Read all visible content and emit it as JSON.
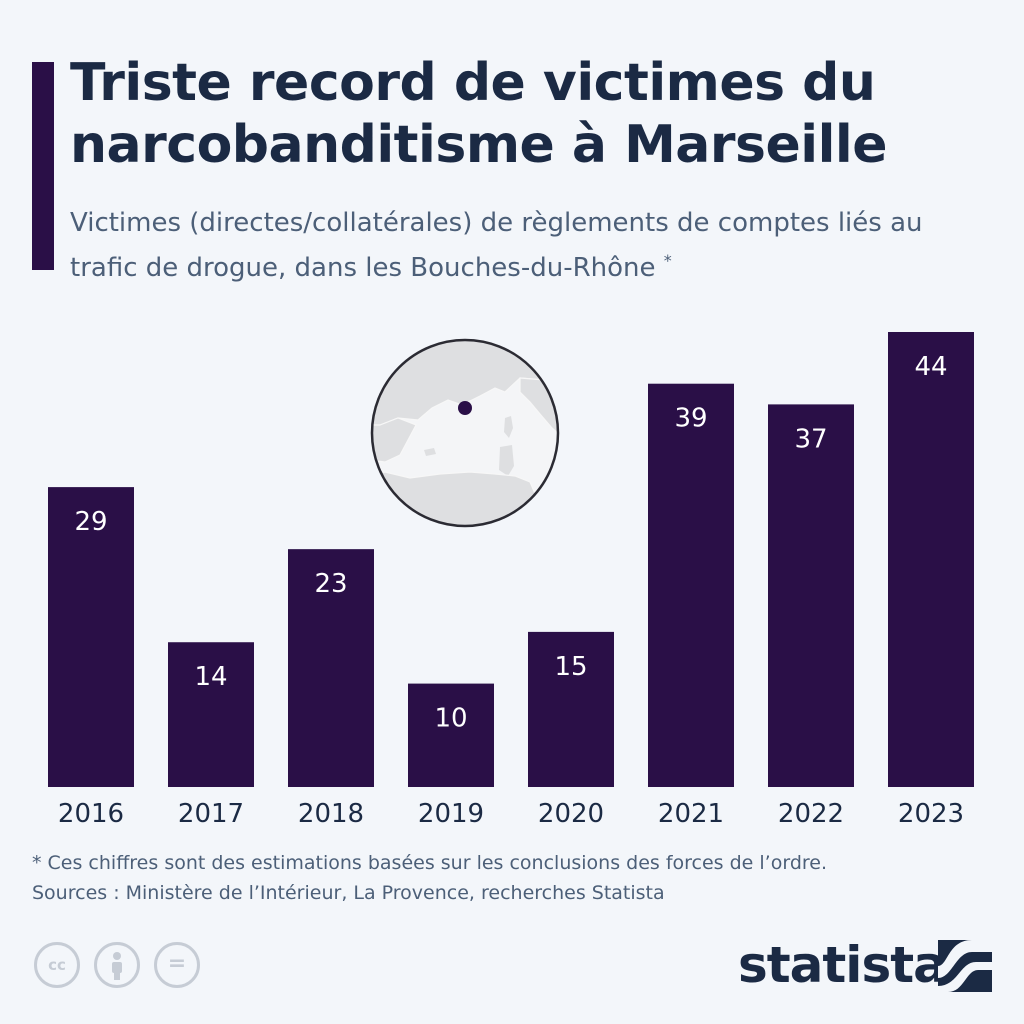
{
  "header": {
    "title": "Triste record de victimes du narcobanditisme à Marseille",
    "subtitle": "Victimes (directes/collatérales) de règlements de comptes liés au trafic de drogue, dans les Bouches-du-Rhône",
    "subtitle_marker": "*"
  },
  "chart_data": {
    "type": "bar",
    "categories": [
      "2016",
      "2017",
      "2018",
      "2019",
      "2020",
      "2021",
      "2022",
      "2023"
    ],
    "values": [
      29,
      14,
      23,
      10,
      15,
      39,
      37,
      44
    ],
    "title": "Triste record de victimes du narcobanditisme à Marseille",
    "xlabel": "",
    "ylabel": "",
    "ylim": [
      0,
      44
    ],
    "grid": false,
    "legend": "none",
    "bar_color": "#2a0f47",
    "label_color": "#ffffff",
    "map_inset": {
      "marker": "Marseille"
    }
  },
  "footer": {
    "note": "* Ces chiffres sont des estimations basées sur les conclusions des forces de l’ordre.",
    "sources": "Sources : Ministère de l’Intérieur, La Provence, recherches Statista",
    "license_icons": [
      "cc-icon",
      "attribution-icon",
      "no-derivatives-icon"
    ],
    "license_text": [
      "cc",
      "="
    ],
    "brand": "statista"
  },
  "colors": {
    "background": "#f3f6fa",
    "bar": "#2a0f47",
    "title": "#1b2a44",
    "text": "#4c5f78"
  }
}
